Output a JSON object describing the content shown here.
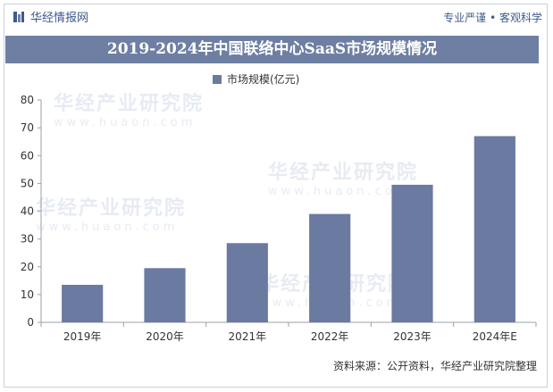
{
  "header": {
    "brand": "华经情报网",
    "slogan": "专业严谨 • 客观科学"
  },
  "footer": {
    "source": "资料来源：公开资料，华经产业研究院整理"
  },
  "watermark": {
    "text": "华经产业研究院",
    "url": "www.huaon.com"
  },
  "colors": {
    "bar": "#6b7aa1",
    "title_bar": "#6e7fa3",
    "brand": "#3d5a8c"
  },
  "chart_data": {
    "type": "bar",
    "title": "2019-2024年中国联络中心SaaS市场规模情况",
    "categories": [
      "2019年",
      "2020年",
      "2021年",
      "2022年",
      "2023年",
      "2024年E"
    ],
    "series": [
      {
        "name": "市场规模(亿元)",
        "values": [
          13.5,
          19.5,
          28.5,
          39,
          49.5,
          67
        ]
      }
    ],
    "yticks": [
      0,
      10,
      20,
      30,
      40,
      50,
      60,
      70,
      80
    ],
    "ylim": [
      0,
      80
    ],
    "grid": false,
    "legend": "top-center"
  }
}
